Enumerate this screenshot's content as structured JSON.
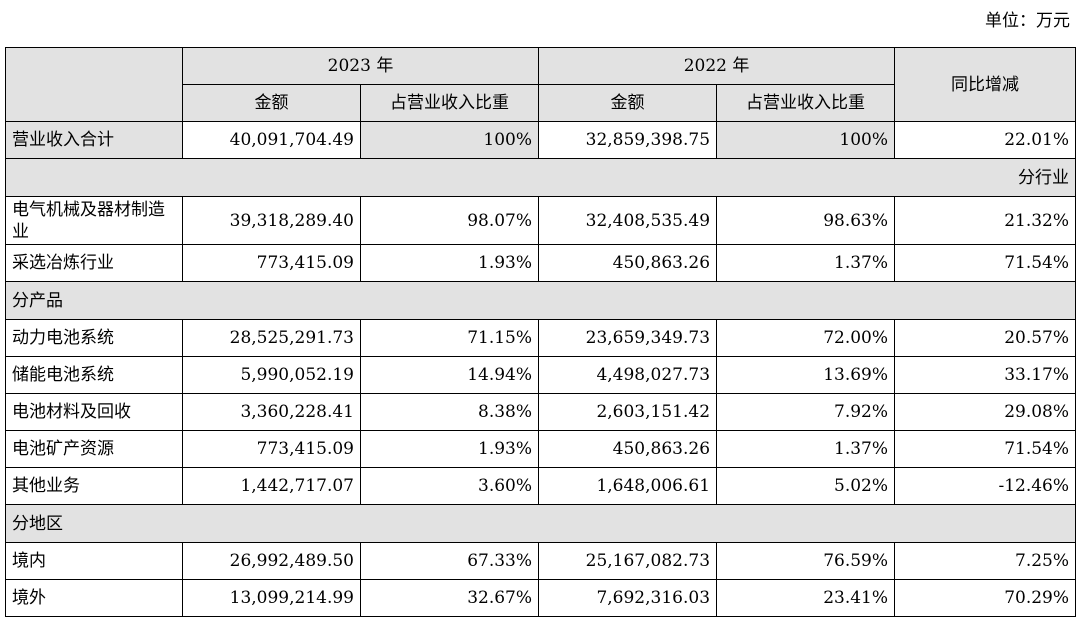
{
  "unit_label": "单位：万元",
  "header": {
    "year_2023": "2023 年",
    "year_2022": "2022 年",
    "amount": "金额",
    "ratio": "占营业收入比重",
    "yoy": "同比增减"
  },
  "total": {
    "label": "营业收入合计",
    "a2023": "40,091,704.49",
    "r2023": "100%",
    "a2022": "32,859,398.75",
    "r2022": "100%",
    "yoy": "22.01%"
  },
  "sections": {
    "industry": "分行业",
    "product": "分产品",
    "region": "分地区"
  },
  "industry_rows": [
    {
      "label": "电气机械及器材制造业",
      "a2023": "39,318,289.40",
      "r2023": "98.07%",
      "a2022": "32,408,535.49",
      "r2022": "98.63%",
      "yoy": "21.32%"
    },
    {
      "label": "采选冶炼行业",
      "a2023": "773,415.09",
      "r2023": "1.93%",
      "a2022": "450,863.26",
      "r2022": "1.37%",
      "yoy": "71.54%"
    }
  ],
  "product_rows": [
    {
      "label": "动力电池系统",
      "a2023": "28,525,291.73",
      "r2023": "71.15%",
      "a2022": "23,659,349.73",
      "r2022": "72.00%",
      "yoy": "20.57%"
    },
    {
      "label": "储能电池系统",
      "a2023": "5,990,052.19",
      "r2023": "14.94%",
      "a2022": "4,498,027.73",
      "r2022": "13.69%",
      "yoy": "33.17%"
    },
    {
      "label": "电池材料及回收",
      "a2023": "3,360,228.41",
      "r2023": "8.38%",
      "a2022": "2,603,151.42",
      "r2022": "7.92%",
      "yoy": "29.08%"
    },
    {
      "label": "电池矿产资源",
      "a2023": "773,415.09",
      "r2023": "1.93%",
      "a2022": "450,863.26",
      "r2022": "1.37%",
      "yoy": "71.54%"
    },
    {
      "label": "其他业务",
      "a2023": "1,442,717.07",
      "r2023": "3.60%",
      "a2022": "1,648,006.61",
      "r2022": "5.02%",
      "yoy": "-12.46%"
    }
  ],
  "region_rows": [
    {
      "label": "境内",
      "a2023": "26,992,489.50",
      "r2023": "67.33%",
      "a2022": "25,167,082.73",
      "r2022": "76.59%",
      "yoy": "7.25%"
    },
    {
      "label": "境外",
      "a2023": "13,099,214.99",
      "r2023": "32.67%",
      "a2022": "7,692,316.03",
      "r2022": "23.41%",
      "yoy": "70.29%"
    }
  ]
}
